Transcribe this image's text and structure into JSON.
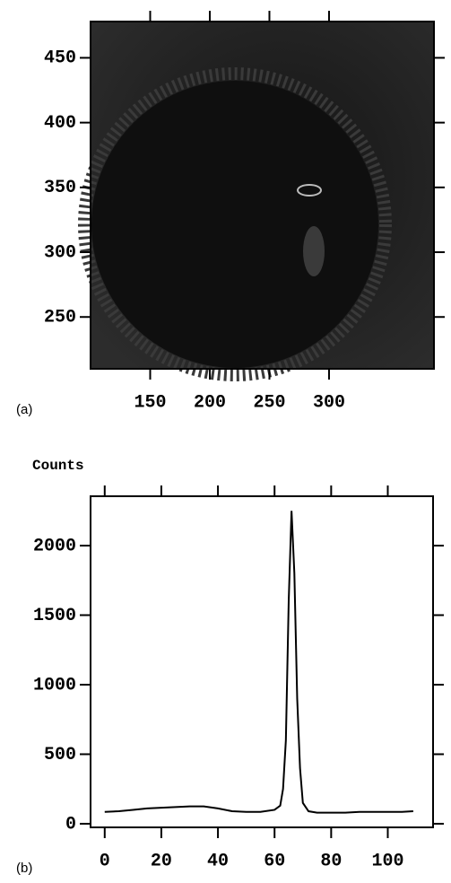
{
  "chart_data": [
    {
      "type": "image",
      "panel_label": "(a)",
      "xlim": [
        100,
        388
      ],
      "xticks": [
        150,
        200,
        250,
        300
      ],
      "ylim": [
        210,
        478
      ],
      "yticks": [
        250,
        300,
        350,
        400,
        450
      ]
    },
    {
      "type": "line",
      "panel_label": "(b)",
      "ylabel": "Counts",
      "color": "#000000",
      "x": [
        0,
        5,
        10,
        15,
        20,
        25,
        30,
        35,
        40,
        45,
        50,
        55,
        60,
        62,
        63,
        64,
        65,
        66,
        67,
        68,
        69,
        70,
        72,
        75,
        80,
        85,
        90,
        95,
        100,
        105,
        109
      ],
      "values": [
        85,
        90,
        100,
        110,
        115,
        120,
        125,
        125,
        110,
        90,
        85,
        85,
        100,
        130,
        250,
        600,
        1600,
        2250,
        1800,
        900,
        400,
        150,
        90,
        80,
        80,
        80,
        85,
        85,
        85,
        85,
        90
      ],
      "xlim": [
        -5,
        116
      ],
      "xticks": [
        0,
        20,
        40,
        60,
        80,
        100
      ],
      "ylim": [
        -26,
        2355
      ],
      "yticks": [
        0,
        500,
        1000,
        1500,
        2000
      ]
    }
  ]
}
